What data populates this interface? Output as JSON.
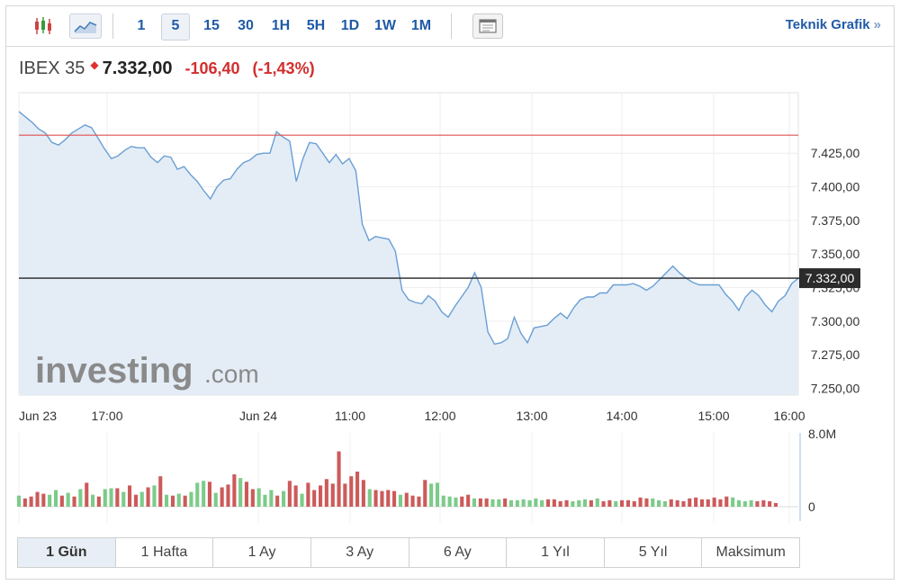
{
  "toolbar": {
    "icons": [
      "candlestick-icon",
      "area-chart-icon"
    ],
    "intervals": [
      "1",
      "5",
      "15",
      "30",
      "1H",
      "5H",
      "1D",
      "1W",
      "1M"
    ],
    "active_interval": "5",
    "menu_icon": "panel-icon",
    "technical_link": "Teknik Grafik",
    "technical_chevron": "»"
  },
  "quote": {
    "name": "IBEX 35",
    "price": "7.332,00",
    "change": "-106,40",
    "change_pct": "(-1,43%)"
  },
  "watermark": {
    "brand": "investing",
    "suffix": ".com"
  },
  "range_tabs": [
    "1 Gün",
    "1 Hafta",
    "1 Ay",
    "3 Ay",
    "6 Ay",
    "1 Yıl",
    "5 Yıl",
    "Maksimum"
  ],
  "active_range": "1 Gün",
  "colors": {
    "line": "#6a9fd4",
    "area": "#e4edf6",
    "up_bar": "#7ccb8a",
    "down_bar": "#cc5a5a",
    "prev_close": "#e05050",
    "current_line": "#222222"
  },
  "chart_data": {
    "type": "area",
    "x_tick_labels": [
      "Jun 23",
      "17:00",
      "Jun 24",
      "11:00",
      "12:00",
      "13:00",
      "14:00",
      "15:00",
      "16:00"
    ],
    "y_ticks": [
      7425,
      7400,
      7375,
      7350,
      7325,
      7300,
      7275,
      7250
    ],
    "y_tick_labels": [
      "7.425,00",
      "7.400,00",
      "7.375,00",
      "7.350,00",
      "7.325,00",
      "7.300,00",
      "7.275,00",
      "7.250,00"
    ],
    "ylim": [
      7245,
      7470
    ],
    "current_price": 7332,
    "current_price_label": "7.332,00",
    "previous_close": 7438.4,
    "price_series": [
      7456,
      7452,
      7448,
      7443,
      7440,
      7433,
      7431,
      7435,
      7440,
      7443,
      7446,
      7444,
      7436,
      7428,
      7421,
      7423,
      7427,
      7430,
      7429,
      7429,
      7422,
      7418,
      7423,
      7422,
      7413,
      7415,
      7409,
      7404,
      7397,
      7391,
      7400,
      7405,
      7406,
      7413,
      7418,
      7420,
      7424,
      7425,
      7425,
      7441,
      7437,
      7434,
      7404,
      7421,
      7433,
      7432,
      7425,
      7418,
      7424,
      7417,
      7421,
      7412,
      7372,
      7360,
      7363,
      7362,
      7361,
      7352,
      7323,
      7316,
      7314,
      7313,
      7319,
      7315,
      7307,
      7303,
      7311,
      7318,
      7325,
      7336,
      7325,
      7292,
      7283,
      7284,
      7287,
      7303,
      7291,
      7284,
      7295,
      7296,
      7297,
      7302,
      7306,
      7302,
      7310,
      7316,
      7318,
      7318,
      7321,
      7321,
      7327,
      7327,
      7327,
      7328,
      7326,
      7323,
      7326,
      7331,
      7336,
      7341,
      7336,
      7332,
      7329,
      7327,
      7327,
      7327,
      7327,
      7320,
      7315,
      7308,
      7318,
      7323,
      7319,
      7312,
      7307,
      7315,
      7319,
      7328,
      7332
    ],
    "volume_max_label": "8.0M",
    "volume_zero_label": "0",
    "volume_max": 8.0,
    "volumes": [
      {
        "v": 1.2,
        "d": "up"
      },
      {
        "v": 0.9,
        "d": "down"
      },
      {
        "v": 1.1,
        "d": "down"
      },
      {
        "v": 1.6,
        "d": "down"
      },
      {
        "v": 1.4,
        "d": "down"
      },
      {
        "v": 1.3,
        "d": "up"
      },
      {
        "v": 1.8,
        "d": "up"
      },
      {
        "v": 1.2,
        "d": "down"
      },
      {
        "v": 1.5,
        "d": "up"
      },
      {
        "v": 1.1,
        "d": "down"
      },
      {
        "v": 1.9,
        "d": "up"
      },
      {
        "v": 2.6,
        "d": "down"
      },
      {
        "v": 1.3,
        "d": "up"
      },
      {
        "v": 1.1,
        "d": "down"
      },
      {
        "v": 1.9,
        "d": "up"
      },
      {
        "v": 2.0,
        "d": "up"
      },
      {
        "v": 2.0,
        "d": "down"
      },
      {
        "v": 1.6,
        "d": "up"
      },
      {
        "v": 2.3,
        "d": "down"
      },
      {
        "v": 1.3,
        "d": "down"
      },
      {
        "v": 1.6,
        "d": "up"
      },
      {
        "v": 2.1,
        "d": "down"
      },
      {
        "v": 2.3,
        "d": "up"
      },
      {
        "v": 3.3,
        "d": "down"
      },
      {
        "v": 1.3,
        "d": "up"
      },
      {
        "v": 1.2,
        "d": "down"
      },
      {
        "v": 1.4,
        "d": "up"
      },
      {
        "v": 1.2,
        "d": "down"
      },
      {
        "v": 1.6,
        "d": "up"
      },
      {
        "v": 2.6,
        "d": "up"
      },
      {
        "v": 2.8,
        "d": "up"
      },
      {
        "v": 2.7,
        "d": "down"
      },
      {
        "v": 1.5,
        "d": "up"
      },
      {
        "v": 2.1,
        "d": "down"
      },
      {
        "v": 2.4,
        "d": "down"
      },
      {
        "v": 3.5,
        "d": "down"
      },
      {
        "v": 3.1,
        "d": "up"
      },
      {
        "v": 2.7,
        "d": "down"
      },
      {
        "v": 1.9,
        "d": "down"
      },
      {
        "v": 2.0,
        "d": "up"
      },
      {
        "v": 1.3,
        "d": "up"
      },
      {
        "v": 1.8,
        "d": "up"
      },
      {
        "v": 1.2,
        "d": "down"
      },
      {
        "v": 1.7,
        "d": "up"
      },
      {
        "v": 2.8,
        "d": "down"
      },
      {
        "v": 2.3,
        "d": "down"
      },
      {
        "v": 1.4,
        "d": "up"
      },
      {
        "v": 2.6,
        "d": "down"
      },
      {
        "v": 1.8,
        "d": "down"
      },
      {
        "v": 2.3,
        "d": "down"
      },
      {
        "v": 3.0,
        "d": "down"
      },
      {
        "v": 2.5,
        "d": "down"
      },
      {
        "v": 6.0,
        "d": "down"
      },
      {
        "v": 2.5,
        "d": "down"
      },
      {
        "v": 3.3,
        "d": "down"
      },
      {
        "v": 3.8,
        "d": "down"
      },
      {
        "v": 2.9,
        "d": "down"
      },
      {
        "v": 1.9,
        "d": "up"
      },
      {
        "v": 1.8,
        "d": "down"
      },
      {
        "v": 1.7,
        "d": "down"
      },
      {
        "v": 1.8,
        "d": "down"
      },
      {
        "v": 1.7,
        "d": "down"
      },
      {
        "v": 1.3,
        "d": "up"
      },
      {
        "v": 1.5,
        "d": "down"
      },
      {
        "v": 1.2,
        "d": "down"
      },
      {
        "v": 1.1,
        "d": "down"
      },
      {
        "v": 2.9,
        "d": "down"
      },
      {
        "v": 2.5,
        "d": "up"
      },
      {
        "v": 2.6,
        "d": "up"
      },
      {
        "v": 1.2,
        "d": "up"
      },
      {
        "v": 1.1,
        "d": "up"
      },
      {
        "v": 1.0,
        "d": "up"
      },
      {
        "v": 1.1,
        "d": "down"
      },
      {
        "v": 1.3,
        "d": "down"
      },
      {
        "v": 0.9,
        "d": "up"
      },
      {
        "v": 0.9,
        "d": "down"
      },
      {
        "v": 0.9,
        "d": "down"
      },
      {
        "v": 0.8,
        "d": "up"
      },
      {
        "v": 0.8,
        "d": "up"
      },
      {
        "v": 0.9,
        "d": "down"
      },
      {
        "v": 0.7,
        "d": "up"
      },
      {
        "v": 0.7,
        "d": "up"
      },
      {
        "v": 0.8,
        "d": "up"
      },
      {
        "v": 0.7,
        "d": "up"
      },
      {
        "v": 0.9,
        "d": "up"
      },
      {
        "v": 0.7,
        "d": "up"
      },
      {
        "v": 0.8,
        "d": "down"
      },
      {
        "v": 0.8,
        "d": "down"
      },
      {
        "v": 0.6,
        "d": "down"
      },
      {
        "v": 0.7,
        "d": "down"
      },
      {
        "v": 0.6,
        "d": "up"
      },
      {
        "v": 0.7,
        "d": "up"
      },
      {
        "v": 0.8,
        "d": "up"
      },
      {
        "v": 0.7,
        "d": "down"
      },
      {
        "v": 0.9,
        "d": "up"
      },
      {
        "v": 0.6,
        "d": "down"
      },
      {
        "v": 0.7,
        "d": "down"
      },
      {
        "v": 0.6,
        "d": "up"
      },
      {
        "v": 0.7,
        "d": "down"
      },
      {
        "v": 0.7,
        "d": "down"
      },
      {
        "v": 0.6,
        "d": "down"
      },
      {
        "v": 1.0,
        "d": "down"
      },
      {
        "v": 0.9,
        "d": "down"
      },
      {
        "v": 0.9,
        "d": "up"
      },
      {
        "v": 0.7,
        "d": "up"
      },
      {
        "v": 0.6,
        "d": "up"
      },
      {
        "v": 0.8,
        "d": "down"
      },
      {
        "v": 0.7,
        "d": "down"
      },
      {
        "v": 0.6,
        "d": "down"
      },
      {
        "v": 0.9,
        "d": "down"
      },
      {
        "v": 1.0,
        "d": "down"
      },
      {
        "v": 0.8,
        "d": "down"
      },
      {
        "v": 0.8,
        "d": "down"
      },
      {
        "v": 1.0,
        "d": "down"
      },
      {
        "v": 0.8,
        "d": "down"
      },
      {
        "v": 1.1,
        "d": "down"
      },
      {
        "v": 1.0,
        "d": "up"
      },
      {
        "v": 0.7,
        "d": "up"
      },
      {
        "v": 0.6,
        "d": "up"
      },
      {
        "v": 0.7,
        "d": "up"
      },
      {
        "v": 0.6,
        "d": "down"
      },
      {
        "v": 0.7,
        "d": "down"
      },
      {
        "v": 0.6,
        "d": "down"
      },
      {
        "v": 0.4,
        "d": "down"
      }
    ]
  }
}
